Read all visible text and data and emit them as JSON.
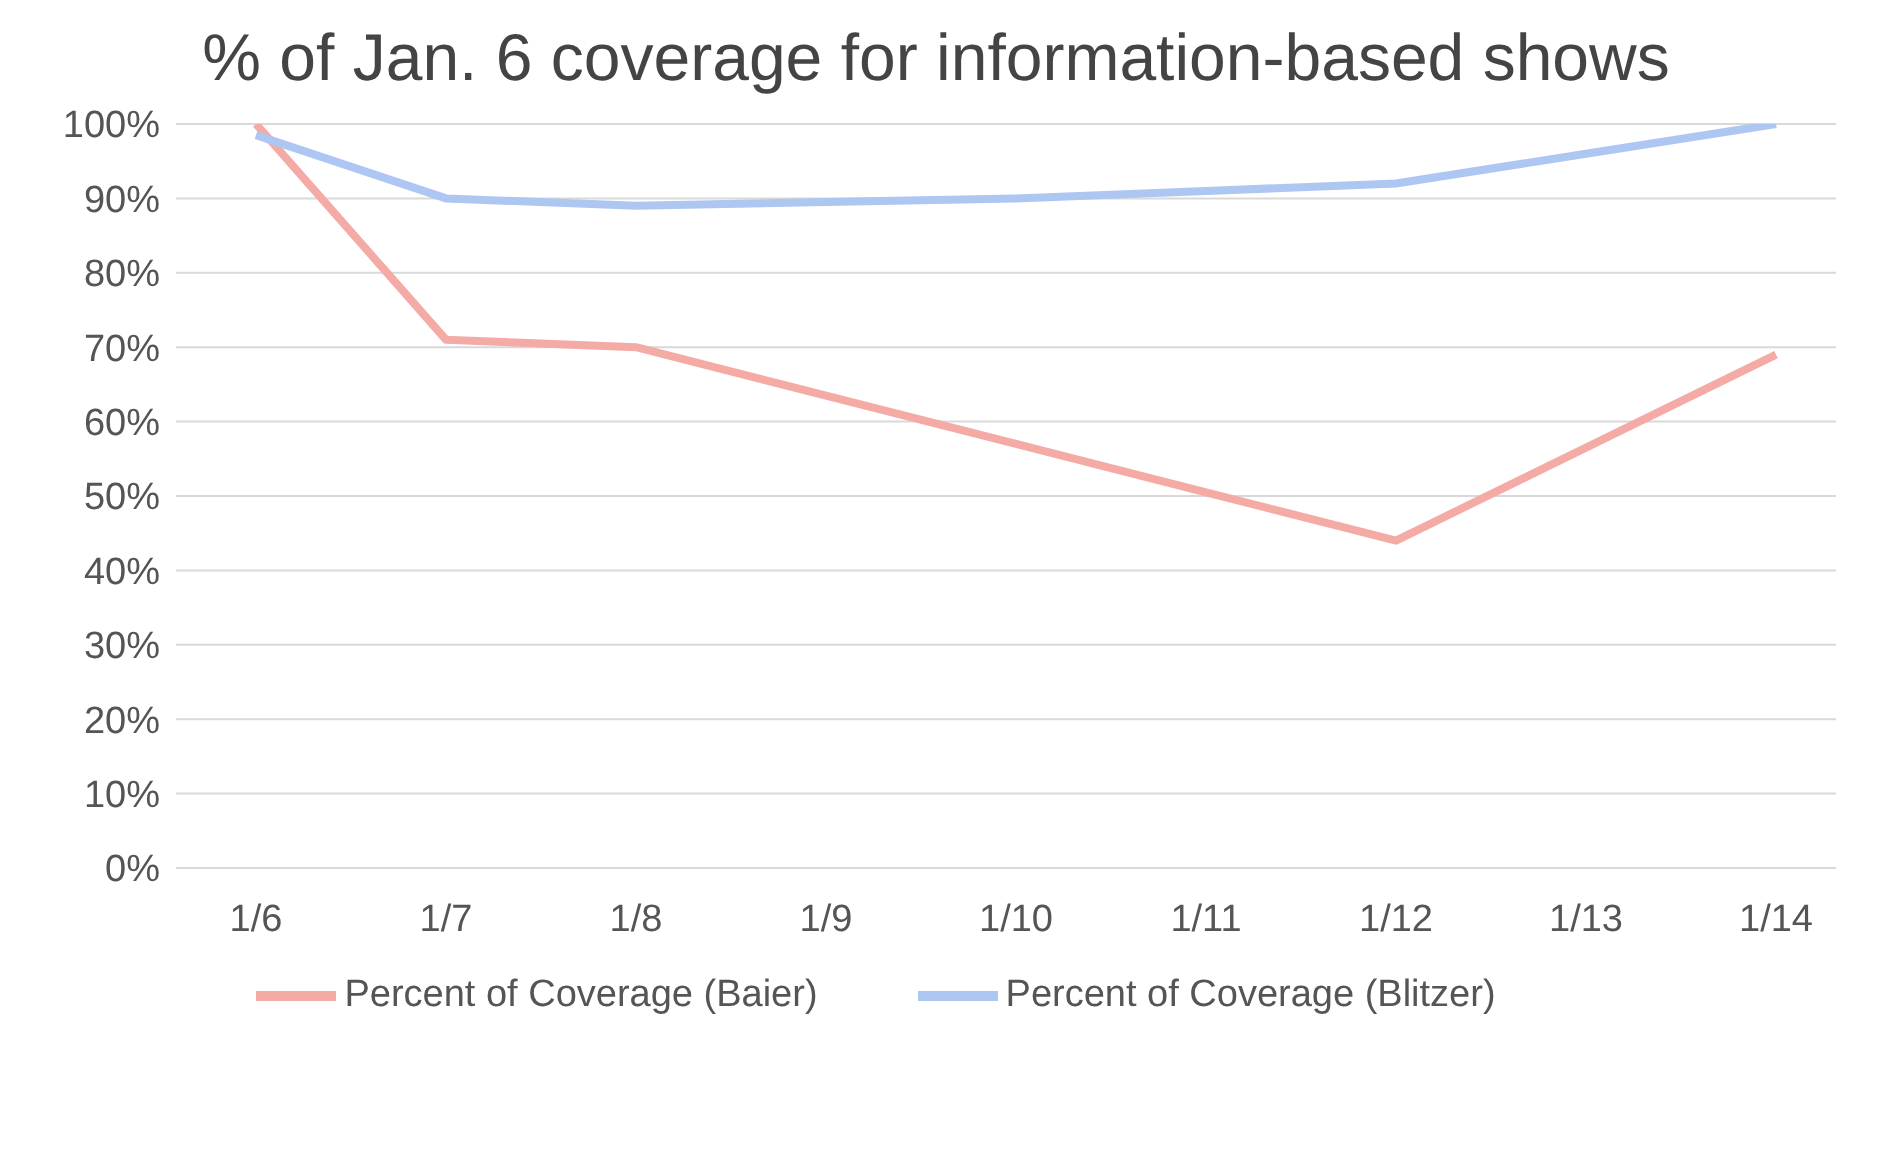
{
  "chart_data": {
    "type": "line",
    "title": "% of Jan. 6 coverage for information-based shows",
    "categories": [
      "1/6",
      "1/7",
      "1/8",
      "1/9",
      "1/10",
      "1/11",
      "1/12",
      "1/13",
      "1/14"
    ],
    "series": [
      {
        "name": "Percent of Coverage (Baier)",
        "color": "#f4aaa5",
        "values": [
          100,
          71,
          70,
          63.5,
          57,
          50.5,
          44,
          56.5,
          69
        ]
      },
      {
        "name": "Percent of Coverage (Blitzer)",
        "color": "#adc6f2",
        "values": [
          98.5,
          90,
          89,
          89.5,
          90,
          91,
          92,
          96,
          100
        ]
      }
    ],
    "ylim": [
      0,
      100
    ],
    "yticks": [
      {
        "value": 0,
        "label": "0%"
      },
      {
        "value": 10,
        "label": "10%"
      },
      {
        "value": 20,
        "label": "20%"
      },
      {
        "value": 30,
        "label": "30%"
      },
      {
        "value": 40,
        "label": "40%"
      },
      {
        "value": 50,
        "label": "50%"
      },
      {
        "value": 60,
        "label": "60%"
      },
      {
        "value": 70,
        "label": "70%"
      },
      {
        "value": 80,
        "label": "80%"
      },
      {
        "value": 90,
        "label": "90%"
      },
      {
        "value": 100,
        "label": "100%"
      }
    ],
    "grid": "y",
    "legend": "bottom",
    "marker": "none",
    "line_style": "solid"
  }
}
